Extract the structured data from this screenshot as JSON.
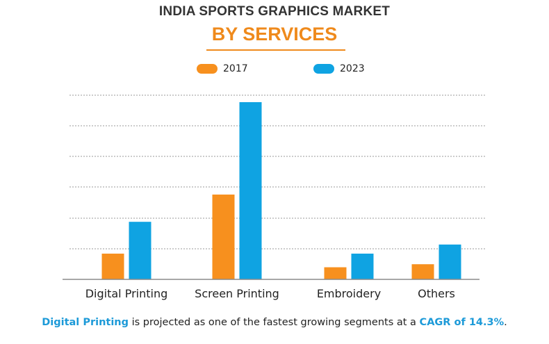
{
  "chart_data": {
    "type": "bar",
    "title": "INDIA SPORTS GRAPHICS MARKET",
    "subtitle": "BY SERVICES",
    "categories": [
      "Digital Printing",
      "Screen Printing",
      "Embroidery",
      "Others"
    ],
    "series": [
      {
        "name": "2017",
        "color": "#f7901e",
        "values": [
          0.85,
          2.8,
          0.4,
          0.5
        ]
      },
      {
        "name": "2023",
        "color": "#0fa3e2",
        "values": [
          1.9,
          5.85,
          0.85,
          1.15
        ]
      }
    ],
    "ylim": [
      0,
      6
    ],
    "xlabel": "",
    "ylabel": "",
    "grid": true,
    "y_ticks_labeled": false,
    "legend_position": "top-center"
  },
  "footnote": {
    "highlight1": "Digital Printing",
    "text1": " is projected as one of the fastest growing segments at a ",
    "highlight2": "CAGR of 14.3%",
    "text2": "."
  }
}
